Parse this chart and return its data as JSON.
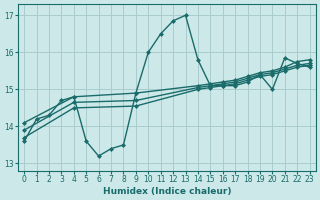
{
  "bg_color": "#cce8e8",
  "grid_color": "#aacccc",
  "line_color": "#1a6b6b",
  "xlabel": "Humidex (Indice chaleur)",
  "xlim": [
    -0.5,
    23.5
  ],
  "ylim": [
    12.8,
    17.3
  ],
  "yticks": [
    13,
    14,
    15,
    16,
    17
  ],
  "xticks": [
    0,
    1,
    2,
    3,
    4,
    5,
    6,
    7,
    8,
    9,
    10,
    11,
    12,
    13,
    14,
    15,
    16,
    17,
    18,
    19,
    20,
    21,
    22,
    23
  ],
  "lines": [
    {
      "x": [
        0,
        1,
        2,
        3,
        4,
        5,
        6,
        7,
        8,
        9,
        10,
        11,
        12,
        13,
        14,
        15,
        16,
        17,
        18,
        19,
        20,
        21,
        22,
        23
      ],
      "y": [
        13.6,
        14.2,
        14.3,
        14.7,
        14.8,
        13.6,
        13.2,
        13.4,
        13.5,
        14.9,
        16.0,
        16.5,
        16.85,
        17.0,
        15.8,
        15.1,
        15.1,
        15.1,
        15.2,
        15.4,
        15.0,
        15.85,
        15.7,
        15.6
      ]
    },
    {
      "x": [
        0,
        4,
        9,
        14,
        15,
        16,
        17,
        18,
        19,
        20,
        21,
        22,
        23
      ],
      "y": [
        14.1,
        14.8,
        14.9,
        15.1,
        15.15,
        15.2,
        15.25,
        15.35,
        15.45,
        15.5,
        15.6,
        15.75,
        15.8
      ]
    },
    {
      "x": [
        0,
        4,
        9,
        14,
        15,
        16,
        17,
        18,
        19,
        20,
        21,
        22,
        23
      ],
      "y": [
        13.9,
        14.65,
        14.7,
        15.05,
        15.1,
        15.15,
        15.2,
        15.3,
        15.4,
        15.45,
        15.55,
        15.65,
        15.7
      ]
    },
    {
      "x": [
        0,
        4,
        9,
        14,
        15,
        16,
        17,
        18,
        19,
        20,
        21,
        22,
        23
      ],
      "y": [
        13.7,
        14.5,
        14.55,
        15.0,
        15.05,
        15.1,
        15.15,
        15.25,
        15.35,
        15.4,
        15.5,
        15.6,
        15.65
      ]
    }
  ],
  "marker": "D",
  "markersize": 2.0,
  "linewidth": 1.0
}
